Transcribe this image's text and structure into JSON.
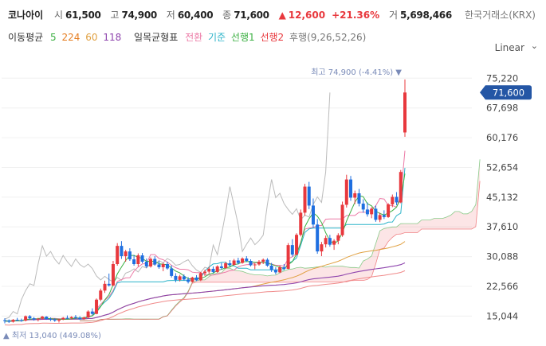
{
  "header": {
    "name": "코나아이",
    "open_label": "시",
    "open": "61,500",
    "high_label": "고",
    "high": "74,900",
    "low_label": "저",
    "low": "60,400",
    "close_label": "종",
    "close": "71,600",
    "change_arrow": "▲",
    "change": "12,600",
    "change_pct": "+21.36%",
    "volume_label": "거",
    "volume": "5,698,466",
    "exchange": "한국거래소(KRX)"
  },
  "indicators": {
    "ma_label": "이동평균",
    "ma": [
      {
        "text": "5",
        "color": "#3cb043"
      },
      {
        "text": "224",
        "color": "#e67e22"
      },
      {
        "text": "60",
        "color": "#e0a040"
      },
      {
        "text": "118",
        "color": "#8e44ad"
      }
    ],
    "ichimoku_label": "일목균형표",
    "ichimoku": [
      {
        "text": "전환",
        "color": "#ec7aa6"
      },
      {
        "text": "기준",
        "color": "#2bb3c9"
      },
      {
        "text": "선행1",
        "color": "#3cb043"
      },
      {
        "text": "선행2",
        "color": "#e8383d"
      },
      {
        "text": "후행(9,26,52,26)",
        "color": "#777777"
      }
    ]
  },
  "scale_mode": "Linear",
  "scale_caret": "⌄",
  "colors": {
    "up": "#e8383d",
    "down": "#1f6fe0",
    "accent_badge": "#2456a5"
  },
  "chart_data": {
    "type": "candlestick",
    "y_ticks": [
      "75,220",
      "67,698",
      "60,176",
      "52,654",
      "45,132",
      "37,610",
      "30,088",
      "22,566",
      "15,044"
    ],
    "y_range": [
      11500,
      78500
    ],
    "last_price_label": "71,600",
    "last_price": 71600,
    "high_annotation": "최고 74,900 (-4.41%)",
    "low_annotation": "최저 13,040 (449.08%)",
    "high_value": 74900,
    "low_value": 13040,
    "candles": [
      [
        14000,
        14500,
        13200,
        13800
      ],
      [
        13800,
        14200,
        13300,
        13600
      ],
      [
        13600,
        14300,
        13400,
        14100
      ],
      [
        14100,
        14600,
        13800,
        14000
      ],
      [
        14000,
        14400,
        13600,
        13900
      ],
      [
        13900,
        15200,
        13700,
        15000
      ],
      [
        15000,
        15300,
        14200,
        14500
      ],
      [
        14500,
        14800,
        13900,
        14200
      ],
      [
        14200,
        14600,
        13700,
        14400
      ],
      [
        14400,
        15100,
        14100,
        14900
      ],
      [
        14900,
        15000,
        14100,
        14300
      ],
      [
        14300,
        14700,
        13800,
        14100
      ],
      [
        14100,
        14500,
        13600,
        13900
      ],
      [
        13900,
        14400,
        13400,
        14200
      ],
      [
        14200,
        14800,
        14000,
        14600
      ],
      [
        14600,
        15200,
        14300,
        14500
      ],
      [
        14500,
        15000,
        14200,
        14800
      ],
      [
        14800,
        15300,
        14400,
        14600
      ],
      [
        14600,
        15000,
        14100,
        14300
      ],
      [
        14300,
        14900,
        14100,
        14700
      ],
      [
        14700,
        16500,
        14500,
        16200
      ],
      [
        16200,
        17000,
        15400,
        15600
      ],
      [
        15600,
        19500,
        15500,
        19200
      ],
      [
        19200,
        22000,
        18800,
        21500
      ],
      [
        21500,
        24000,
        20900,
        23200
      ],
      [
        23200,
        25800,
        22500,
        22800
      ],
      [
        22800,
        29000,
        22600,
        28200
      ],
      [
        28200,
        33500,
        27800,
        32800
      ],
      [
        32800,
        34000,
        29500,
        30200
      ],
      [
        30200,
        31800,
        28800,
        31400
      ],
      [
        31400,
        32200,
        29000,
        29400
      ],
      [
        29400,
        30500,
        27800,
        28200
      ],
      [
        28200,
        30900,
        27600,
        30400
      ],
      [
        30400,
        31000,
        28400,
        28800
      ],
      [
        28800,
        29600,
        27200,
        27600
      ],
      [
        27600,
        29900,
        27300,
        29500
      ],
      [
        29500,
        30200,
        27800,
        28100
      ],
      [
        28100,
        29000,
        27000,
        27400
      ],
      [
        27400,
        28600,
        26400,
        28200
      ],
      [
        28200,
        28800,
        26800,
        27100
      ],
      [
        27100,
        27900,
        24800,
        25200
      ],
      [
        25200,
        25900,
        23600,
        24200
      ],
      [
        24200,
        25500,
        23800,
        25100
      ],
      [
        25100,
        25600,
        24000,
        24300
      ],
      [
        24300,
        24900,
        23300,
        23700
      ],
      [
        23700,
        25000,
        23500,
        24800
      ],
      [
        24800,
        25400,
        23900,
        24100
      ],
      [
        24100,
        26200,
        23900,
        25900
      ],
      [
        25900,
        26800,
        25200,
        26300
      ],
      [
        26300,
        27500,
        25800,
        27000
      ],
      [
        27000,
        27600,
        25900,
        26200
      ],
      [
        26200,
        27900,
        26000,
        27600
      ],
      [
        27600,
        28500,
        26800,
        27200
      ],
      [
        27200,
        28800,
        27000,
        28400
      ],
      [
        28400,
        29200,
        27600,
        28000
      ],
      [
        28000,
        29500,
        27800,
        29100
      ],
      [
        29100,
        29800,
        28100,
        28500
      ],
      [
        28500,
        29900,
        28300,
        29600
      ],
      [
        29600,
        30200,
        28700,
        29000
      ],
      [
        29000,
        29400,
        27600,
        27900
      ],
      [
        27900,
        28400,
        26900,
        28100
      ],
      [
        28100,
        29200,
        27800,
        28800
      ],
      [
        28800,
        29600,
        28200,
        29300
      ],
      [
        29300,
        29700,
        27500,
        27800
      ],
      [
        27800,
        28500,
        26200,
        26700
      ],
      [
        26700,
        27400,
        25600,
        26100
      ],
      [
        26100,
        27800,
        25900,
        27400
      ],
      [
        27400,
        28200,
        26800,
        27000
      ],
      [
        27000,
        33500,
        26900,
        33000
      ],
      [
        33000,
        34500,
        30100,
        30600
      ],
      [
        30600,
        36000,
        30400,
        35600
      ],
      [
        35600,
        42000,
        35200,
        41200
      ],
      [
        41200,
        48500,
        40400,
        47800
      ],
      [
        47800,
        49000,
        42100,
        43000
      ],
      [
        43000,
        44800,
        37400,
        38200
      ],
      [
        38200,
        39600,
        30800,
        31400
      ],
      [
        31400,
        33800,
        30200,
        33200
      ],
      [
        33200,
        35400,
        32400,
        34800
      ],
      [
        34800,
        35600,
        32600,
        33100
      ],
      [
        33100,
        34500,
        31800,
        34100
      ],
      [
        34100,
        36000,
        33200,
        35500
      ],
      [
        35500,
        44000,
        35100,
        43200
      ],
      [
        43200,
        50800,
        42500,
        49600
      ],
      [
        49600,
        50500,
        44200,
        45000
      ],
      [
        45000,
        46800,
        43400,
        46100
      ],
      [
        46100,
        47200,
        42800,
        43500
      ],
      [
        43500,
        44600,
        41200,
        42000
      ],
      [
        42000,
        43800,
        40200,
        40800
      ],
      [
        40800,
        42600,
        39800,
        42200
      ],
      [
        42200,
        43000,
        38900,
        39400
      ],
      [
        39400,
        41200,
        38800,
        40600
      ],
      [
        40600,
        41800,
        39600,
        40100
      ],
      [
        40100,
        43600,
        39900,
        43300
      ],
      [
        43300,
        45800,
        42600,
        45200
      ],
      [
        45200,
        46400,
        43100,
        43800
      ],
      [
        43800,
        52000,
        43600,
        51500
      ],
      [
        61500,
        74900,
        60400,
        71600
      ]
    ]
  }
}
